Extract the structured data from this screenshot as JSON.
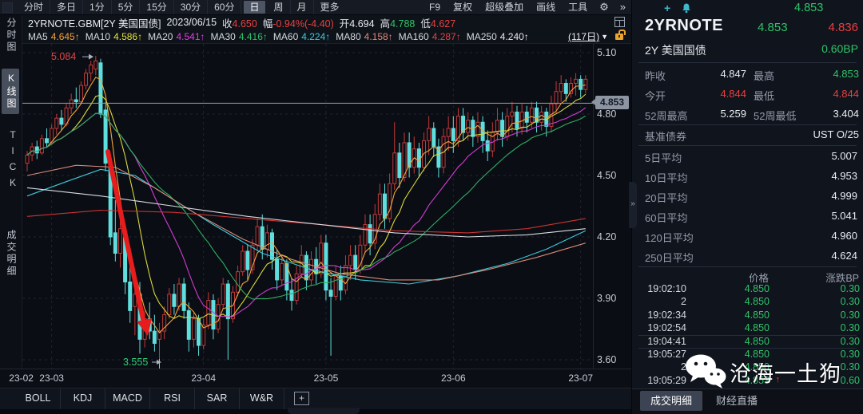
{
  "colors": {
    "green": "#2ec468",
    "red": "#e84040",
    "white": "#e9ecf1",
    "accent_cyan": "#3db8cc",
    "orange_lock": "#eca32f"
  },
  "toolbar": {
    "left_tabs": [
      "分时",
      "多日",
      "1分",
      "5分",
      "15分",
      "30分",
      "60分",
      "日",
      "周",
      "月",
      "更多"
    ],
    "selected_tab": "日",
    "right_items": [
      "F9",
      "复权",
      "超级叠加",
      "画线",
      "工具"
    ],
    "gear_icon": "⚙",
    "more_icon": "»"
  },
  "info_bar": {
    "symbol": "2YRNOTE.GBM[2Y 美国国债]",
    "date": "2023/06/15",
    "close_label": "收",
    "close": "4.650",
    "range_label": "幅",
    "range": "-0.94%(-4.40)",
    "open_label": "开",
    "open": "4.694",
    "high_label": "高",
    "high": "4.788",
    "low_label": "低",
    "low": "4.627"
  },
  "ma_bar": {
    "items": [
      {
        "label": "MA5",
        "value": "4.645↑",
        "color": "#f2a33c"
      },
      {
        "label": "MA10",
        "value": "4.586↑",
        "color": "#e3e33a"
      },
      {
        "label": "MA20",
        "value": "4.541↑",
        "color": "#e23ee2"
      },
      {
        "label": "MA30",
        "value": "4.416↑",
        "color": "#2fbf68"
      },
      {
        "label": "MA60",
        "value": "4.224↑",
        "color": "#3ecadd"
      },
      {
        "label": "MA80",
        "value": "4.158↑",
        "color": "#e0887b"
      },
      {
        "label": "MA160",
        "value": "4.287↑",
        "color": "#e04343"
      },
      {
        "label": "MA250",
        "value": "4.240↑",
        "color": "#e7eaef"
      }
    ],
    "period": "(117日)",
    "caret": "▼"
  },
  "sidebar": {
    "items": [
      {
        "label": "分时图",
        "active": false
      },
      {
        "label": "K线图",
        "active": true
      },
      {
        "label": "TICK",
        "active": false
      },
      {
        "label": "成交明细",
        "active": false
      }
    ]
  },
  "chart_data": {
    "type": "candlestick",
    "title": "2YRNOTE.GBM 2Y US Treasury daily K-line",
    "ylim": [
      3.555,
      5.143
    ],
    "grid": true,
    "y_ticks": [
      {
        "label": "5.10",
        "value": 5.1
      },
      {
        "label": "4.80",
        "value": 4.8
      },
      {
        "label": "4.50",
        "value": 4.5
      },
      {
        "label": "4.20",
        "value": 4.2
      },
      {
        "label": "3.90",
        "value": 3.9
      },
      {
        "label": "3.60",
        "value": 3.6
      }
    ],
    "x_labels": [
      {
        "text": "23-02",
        "idx": -1.2
      },
      {
        "text": "23-03",
        "idx": 5
      },
      {
        "text": "23-04",
        "idx": 36
      },
      {
        "text": "23-05",
        "idx": 61
      },
      {
        "text": "23-06",
        "idx": 87
      },
      {
        "text": "23-07",
        "idx": 113
      }
    ],
    "month_indices": [
      5,
      36,
      61,
      87,
      113
    ],
    "last_price": 4.853,
    "last_price_label": "4.853",
    "high_annotation": {
      "text": "5.084",
      "price": 5.084
    },
    "low_annotation": {
      "text": "3.555",
      "price": 3.555
    },
    "up_color": "#c23a3a",
    "down_color": "#5fdede",
    "ma_windows": [
      5,
      10,
      20,
      30
    ],
    "ma_colors": {
      "ma5": "#f2a33c",
      "ma10": "#d9d93a",
      "ma20": "#d43bd4",
      "ma30": "#2fae62",
      "ma60": "#3ecadd",
      "ma80": "#d88a7a",
      "ma160": "#cc3333",
      "ma250": "#d8dce2"
    },
    "ma_long": {
      "ma60": [
        [
          0,
          4.4
        ],
        [
          8,
          4.47
        ],
        [
          15,
          4.53
        ],
        [
          22,
          4.5
        ],
        [
          30,
          4.38
        ],
        [
          38,
          4.26
        ],
        [
          48,
          4.12
        ],
        [
          58,
          4.04
        ],
        [
          68,
          3.99
        ],
        [
          78,
          3.97
        ],
        [
          88,
          4.01
        ],
        [
          98,
          4.07
        ],
        [
          106,
          4.14
        ],
        [
          114,
          4.23
        ]
      ],
      "ma80": [
        [
          0,
          4.5
        ],
        [
          10,
          4.55
        ],
        [
          18,
          4.54
        ],
        [
          26,
          4.44
        ],
        [
          34,
          4.32
        ],
        [
          44,
          4.19
        ],
        [
          54,
          4.09
        ],
        [
          64,
          4.02
        ],
        [
          74,
          3.99
        ],
        [
          84,
          3.99
        ],
        [
          94,
          4.04
        ],
        [
          104,
          4.1
        ],
        [
          114,
          4.17
        ]
      ],
      "ma160": [
        [
          0,
          4.3
        ],
        [
          15,
          4.33
        ],
        [
          30,
          4.32
        ],
        [
          45,
          4.29
        ],
        [
          60,
          4.26
        ],
        [
          75,
          4.23
        ],
        [
          90,
          4.22
        ],
        [
          102,
          4.24
        ],
        [
          114,
          4.29
        ]
      ],
      "ma250": [
        [
          0,
          4.44
        ],
        [
          15,
          4.4
        ],
        [
          30,
          4.35
        ],
        [
          45,
          4.3
        ],
        [
          60,
          4.26
        ],
        [
          75,
          4.22
        ],
        [
          90,
          4.2
        ],
        [
          102,
          4.21
        ],
        [
          114,
          4.24
        ]
      ]
    },
    "candles": [
      [
        4.56,
        4.62,
        4.52,
        4.6
      ],
      [
        4.6,
        4.66,
        4.57,
        4.64
      ],
      [
        4.64,
        4.67,
        4.58,
        4.61
      ],
      [
        4.61,
        4.7,
        4.6,
        4.68
      ],
      [
        4.68,
        4.73,
        4.64,
        4.66
      ],
      [
        4.66,
        4.75,
        4.65,
        4.73
      ],
      [
        4.73,
        4.8,
        4.7,
        4.78
      ],
      [
        4.78,
        4.82,
        4.72,
        4.75
      ],
      [
        4.75,
        4.85,
        4.74,
        4.83
      ],
      [
        4.83,
        4.9,
        4.8,
        4.87
      ],
      [
        4.87,
        4.93,
        4.83,
        4.86
      ],
      [
        4.86,
        4.96,
        4.85,
        4.94
      ],
      [
        4.94,
        5.02,
        4.92,
        5.0
      ],
      [
        5.0,
        5.06,
        4.96,
        5.04
      ],
      [
        5.02,
        5.084,
        4.99,
        5.06
      ],
      [
        5.05,
        5.07,
        4.78,
        4.8
      ],
      [
        4.82,
        4.86,
        4.52,
        4.56
      ],
      [
        4.54,
        4.6,
        4.16,
        4.2
      ],
      [
        4.22,
        4.38,
        4.08,
        4.12
      ],
      [
        4.12,
        4.28,
        4.05,
        4.24
      ],
      [
        4.2,
        4.24,
        3.92,
        3.98
      ],
      [
        3.98,
        4.06,
        3.78,
        3.84
      ],
      [
        3.86,
        3.96,
        3.72,
        3.92
      ],
      [
        3.92,
        3.98,
        3.63,
        3.7
      ],
      [
        3.7,
        3.84,
        3.66,
        3.8
      ],
      [
        3.8,
        3.88,
        3.7,
        3.74
      ],
      [
        3.74,
        3.82,
        3.64,
        3.68
      ],
      [
        3.7,
        3.78,
        3.555,
        3.74
      ],
      [
        3.74,
        3.86,
        3.7,
        3.82
      ],
      [
        3.82,
        3.95,
        3.8,
        3.92
      ],
      [
        3.92,
        3.97,
        3.82,
        3.86
      ],
      [
        3.86,
        4.0,
        3.84,
        3.97
      ],
      [
        3.97,
        4.0,
        3.8,
        3.84
      ],
      [
        3.84,
        3.88,
        3.64,
        3.7
      ],
      [
        3.7,
        3.83,
        3.66,
        3.8
      ],
      [
        3.8,
        3.82,
        3.62,
        3.67
      ],
      [
        3.67,
        3.8,
        3.65,
        3.77
      ],
      [
        3.77,
        3.93,
        3.75,
        3.89
      ],
      [
        3.89,
        3.92,
        3.7,
        3.75
      ],
      [
        3.75,
        3.9,
        3.73,
        3.87
      ],
      [
        3.87,
        4.0,
        3.85,
        3.97
      ],
      [
        3.97,
        3.99,
        3.6,
        3.8
      ],
      [
        3.8,
        3.96,
        3.78,
        3.93
      ],
      [
        3.93,
        4.06,
        3.91,
        4.03
      ],
      [
        4.03,
        4.16,
        4.01,
        4.13
      ],
      [
        4.13,
        4.16,
        3.99,
        4.04
      ],
      [
        4.04,
        4.19,
        4.02,
        4.16
      ],
      [
        4.16,
        4.29,
        4.13,
        4.25
      ],
      [
        4.25,
        4.31,
        4.09,
        4.14
      ],
      [
        4.14,
        4.26,
        4.1,
        4.22
      ],
      [
        4.22,
        4.24,
        4.04,
        4.09
      ],
      [
        4.09,
        4.14,
        3.94,
        3.99
      ],
      [
        3.99,
        4.11,
        3.96,
        4.07
      ],
      [
        4.07,
        4.09,
        3.89,
        3.94
      ],
      [
        3.94,
        4.0,
        3.84,
        3.89
      ],
      [
        3.89,
        4.06,
        3.87,
        4.02
      ],
      [
        4.02,
        4.16,
        4.0,
        4.11
      ],
      [
        4.11,
        4.13,
        3.94,
        3.99
      ],
      [
        3.99,
        4.13,
        3.96,
        4.09
      ],
      [
        4.09,
        4.15,
        3.97,
        4.02
      ],
      [
        4.02,
        4.21,
        4.0,
        4.17
      ],
      [
        4.17,
        4.21,
        3.89,
        3.94
      ],
      [
        3.94,
        4.0,
        3.62,
        3.91
      ],
      [
        3.91,
        4.06,
        3.89,
        4.01
      ],
      [
        4.01,
        4.06,
        3.89,
        3.94
      ],
      [
        3.94,
        4.11,
        3.92,
        4.06
      ],
      [
        4.06,
        4.16,
        3.99,
        4.11
      ],
      [
        4.11,
        4.16,
        3.99,
        4.04
      ],
      [
        4.04,
        4.21,
        4.02,
        4.16
      ],
      [
        4.16,
        4.31,
        4.12,
        4.26
      ],
      [
        4.26,
        4.31,
        4.11,
        4.17
      ],
      [
        4.17,
        4.36,
        4.14,
        4.31
      ],
      [
        4.31,
        4.46,
        4.28,
        4.41
      ],
      [
        4.41,
        4.46,
        4.24,
        4.29
      ],
      [
        4.29,
        4.51,
        4.27,
        4.46
      ],
      [
        4.46,
        4.76,
        4.43,
        4.61
      ],
      [
        4.61,
        4.66,
        4.44,
        4.49
      ],
      [
        4.49,
        4.71,
        4.47,
        4.66
      ],
      [
        4.66,
        4.71,
        4.49,
        4.54
      ],
      [
        4.54,
        4.69,
        4.51,
        4.63
      ],
      [
        4.63,
        4.66,
        4.49,
        4.54
      ],
      [
        4.54,
        4.71,
        4.52,
        4.67
      ],
      [
        4.67,
        4.79,
        4.6,
        4.73
      ],
      [
        4.73,
        4.76,
        4.59,
        4.64
      ],
      [
        4.64,
        4.68,
        4.49,
        4.54
      ],
      [
        4.54,
        4.73,
        4.51,
        4.69
      ],
      [
        4.69,
        4.79,
        4.62,
        4.73
      ],
      [
        4.73,
        4.79,
        4.61,
        4.67
      ],
      [
        4.67,
        4.83,
        4.64,
        4.79
      ],
      [
        4.79,
        4.83,
        4.67,
        4.71
      ],
      [
        4.71,
        4.81,
        4.67,
        4.77
      ],
      [
        4.77,
        4.79,
        4.64,
        4.69
      ],
      [
        4.69,
        4.81,
        4.66,
        4.76
      ],
      [
        4.76,
        4.79,
        4.61,
        4.67
      ],
      [
        4.67,
        4.72,
        4.57,
        4.62
      ],
      [
        4.62,
        4.76,
        4.59,
        4.71
      ],
      [
        4.71,
        4.83,
        4.67,
        4.77
      ],
      [
        4.77,
        4.81,
        4.64,
        4.69
      ],
      [
        4.69,
        4.83,
        4.67,
        4.79
      ],
      [
        4.79,
        4.86,
        4.71,
        4.81
      ],
      [
        4.81,
        4.84,
        4.69,
        4.73
      ],
      [
        4.73,
        4.85,
        4.7,
        4.81
      ],
      [
        4.81,
        4.84,
        4.71,
        4.76
      ],
      [
        4.76,
        4.86,
        4.73,
        4.83
      ],
      [
        4.83,
        4.86,
        4.71,
        4.76
      ],
      [
        4.76,
        4.84,
        4.72,
        4.81
      ],
      [
        4.81,
        4.83,
        4.69,
        4.74
      ],
      [
        4.74,
        4.89,
        4.71,
        4.85
      ],
      [
        4.85,
        4.96,
        4.8,
        4.91
      ],
      [
        4.91,
        4.99,
        4.86,
        4.95
      ],
      [
        4.95,
        4.97,
        4.86,
        4.9
      ],
      [
        4.9,
        4.98,
        4.88,
        4.95
      ],
      [
        4.95,
        5.0,
        4.89,
        4.97
      ],
      [
        4.97,
        4.99,
        4.88,
        4.92
      ],
      [
        4.92,
        4.99,
        4.9,
        4.97
      ]
    ]
  },
  "bottom_bar": {
    "indicators": [
      "BOLL",
      "KDJ",
      "MACD",
      "RSI",
      "SAR",
      "W&R"
    ],
    "add_label": "+",
    "collapse_icon": "«"
  },
  "panel": {
    "add_icon": "+",
    "top_price": "4.853",
    "symbol": "2YRNOTE",
    "bid": "4.853",
    "ask": "4.836",
    "name": "2Y 美国国债",
    "change_bp": "0.60BP",
    "stats": [
      {
        "label": "昨收",
        "value": "4.847",
        "color": "#e9ecf1"
      },
      {
        "label": "最高",
        "value": "4.853",
        "color": "#2ec468"
      },
      {
        "label": "今开",
        "value": "4.844",
        "color": "#e84040"
      },
      {
        "label": "最低",
        "value": "4.844",
        "color": "#e84040"
      },
      {
        "label": "52周最高",
        "value": "5.259",
        "color": "#e9ecf1"
      },
      {
        "label": "52周最低",
        "value": "3.404",
        "color": "#e9ecf1"
      }
    ],
    "benchmark_label": "基准债券",
    "benchmark_value": "UST O/25",
    "averages": [
      {
        "label": "5日平均",
        "value": "5.007"
      },
      {
        "label": "10日平均",
        "value": "4.953"
      },
      {
        "label": "20日平均",
        "value": "4.999"
      },
      {
        "label": "60日平均",
        "value": "5.041"
      },
      {
        "label": "120日平均",
        "value": "4.960"
      },
      {
        "label": "250日平均",
        "value": "4.624"
      }
    ],
    "table": {
      "price_header": "价格",
      "change_header": "涨跌BP",
      "rows": [
        {
          "time": "19:02:10",
          "price": "4.850",
          "change": "0.30",
          "up": ""
        },
        {
          "time": "2",
          "price": "4.850",
          "change": "0.30",
          "up": ""
        },
        {
          "time": "19:02:34",
          "price": "4.850",
          "change": "0.30",
          "up": ""
        },
        {
          "time": "19:02:54",
          "price": "4.850",
          "change": "0.30",
          "up": ""
        },
        {
          "time": "19:04:41",
          "price": "4.850",
          "change": "0.30",
          "up": ""
        },
        {
          "time": "19:05:27",
          "price": "4.850",
          "change": "0.30",
          "up": ""
        },
        {
          "time": "2",
          "price": "4.850",
          "change": "0.30",
          "up": ""
        },
        {
          "time": "19:05:29",
          "price": "4.853",
          "change": "0.60",
          "up": "↑"
        }
      ]
    },
    "tabs": [
      {
        "label": "成交明细",
        "active": true
      },
      {
        "label": "财经直播",
        "active": false
      }
    ],
    "collapse_icon": "»",
    "watermark_text": "沧海一土狗"
  }
}
